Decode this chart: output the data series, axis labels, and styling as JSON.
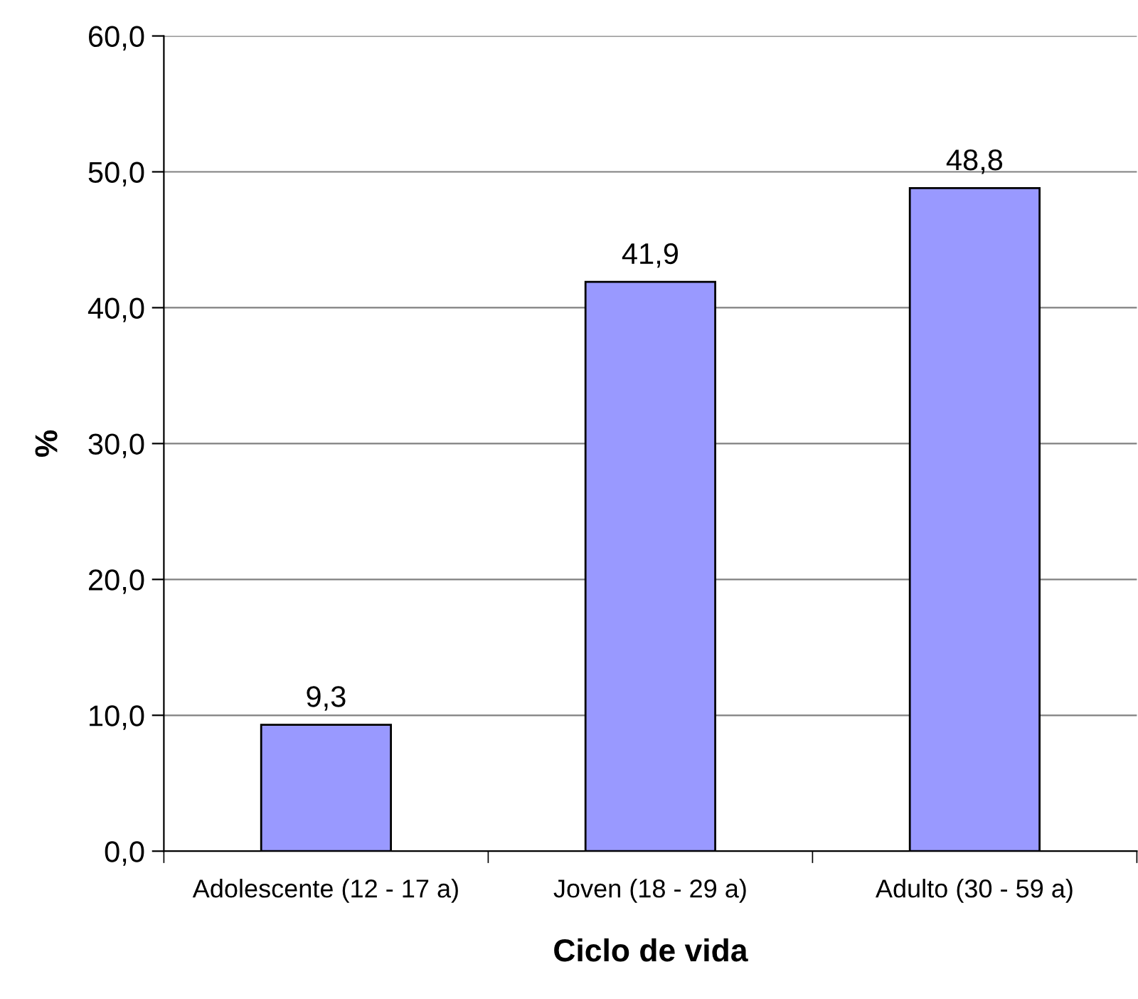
{
  "chart_data": {
    "type": "bar",
    "xlabel": "Ciclo de vida",
    "ylabel": "%",
    "categories": [
      "Adolescente (12 - 17 a)",
      "Joven (18 - 29 a)",
      "Adulto (30 - 59 a)"
    ],
    "values": [
      9.3,
      41.9,
      48.8
    ],
    "value_labels": [
      "9,3",
      "41,9",
      "48,8"
    ],
    "color": "#9999ff",
    "ylim": [
      0,
      60
    ],
    "yticks": [
      {
        "value": 0,
        "label": "0,0"
      },
      {
        "value": 10,
        "label": "10,0"
      },
      {
        "value": 20,
        "label": "20,0"
      },
      {
        "value": 30,
        "label": "30,0"
      },
      {
        "value": 40,
        "label": "40,0"
      },
      {
        "value": 50,
        "label": "50,0"
      },
      {
        "value": 60,
        "label": "60,0"
      }
    ],
    "grid": "y",
    "legend": false
  }
}
